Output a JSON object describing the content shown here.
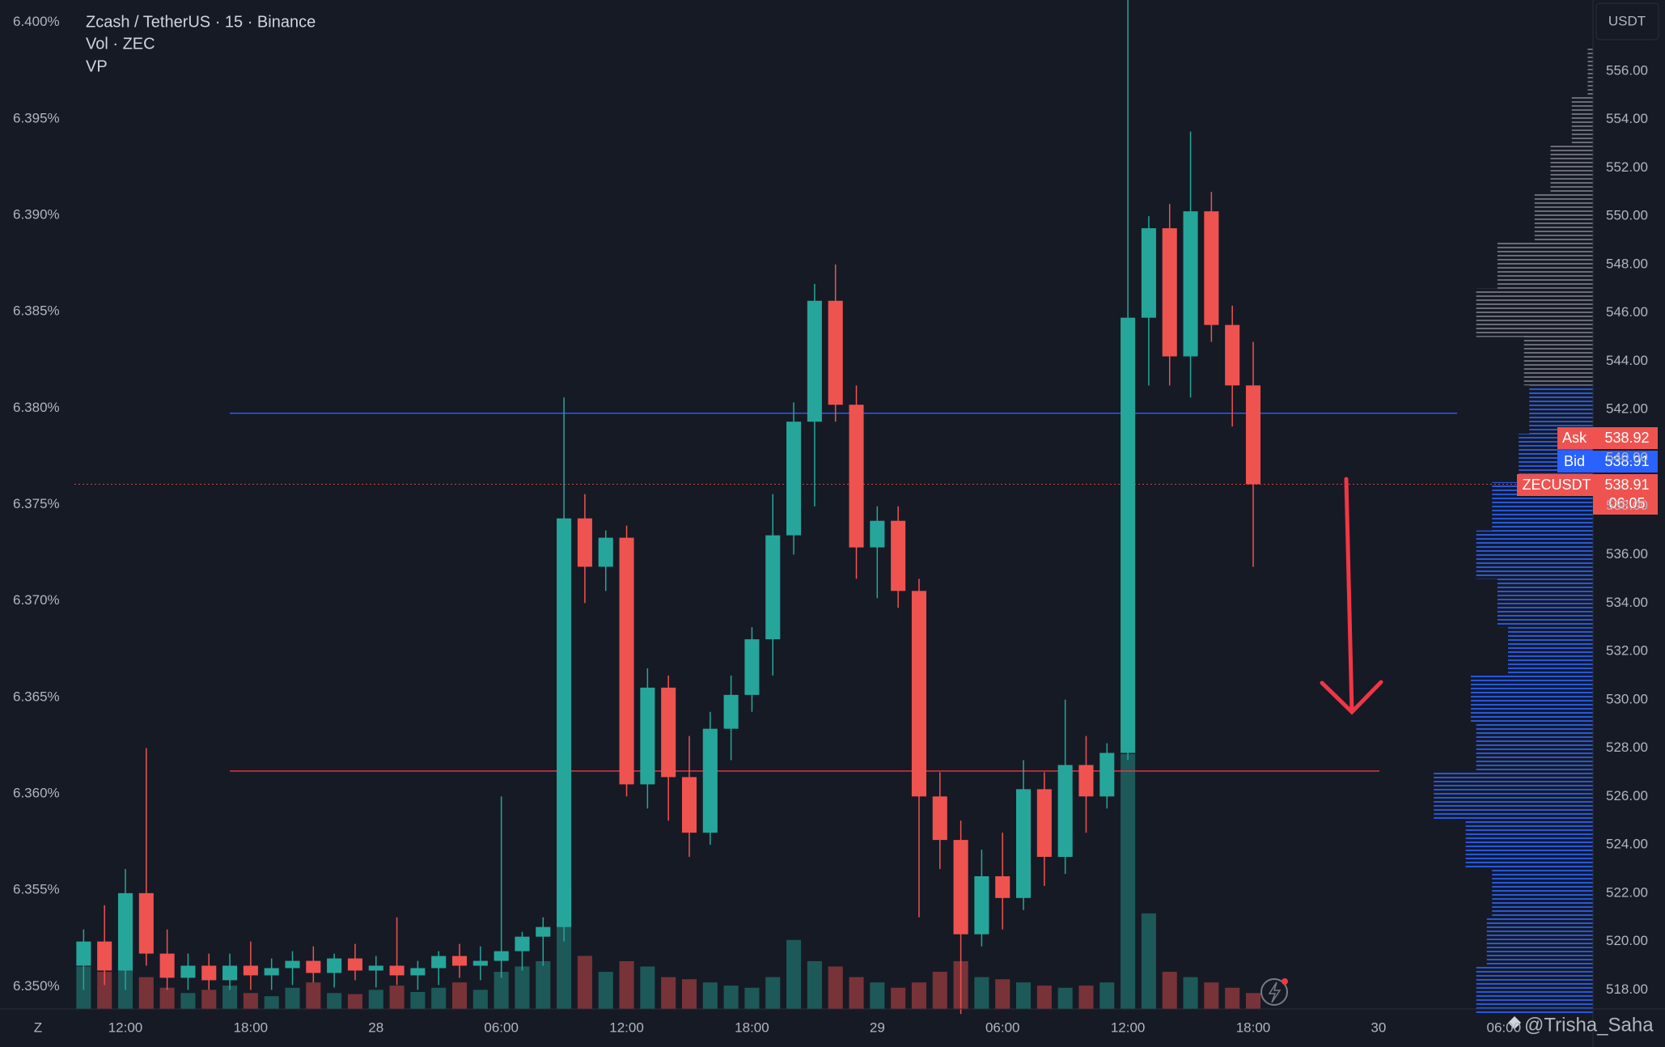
{
  "chart_data": {
    "type": "candlestick",
    "title": "Zcash / TetherUS · 15 · Binance",
    "indicators": [
      "Vol · ZEC",
      "VP"
    ],
    "currency": "USDT",
    "up_color": "#26a69a",
    "down_color": "#ef5350",
    "x": [
      10,
      11,
      12,
      13,
      14,
      15,
      16,
      17,
      18,
      19,
      20,
      21,
      22,
      23,
      24,
      25,
      26,
      27,
      28,
      29,
      30,
      31,
      32,
      33,
      34,
      35,
      36,
      37,
      38,
      39,
      40,
      41,
      42,
      43,
      44,
      45,
      46,
      47,
      48,
      49,
      50,
      51,
      52,
      53,
      54,
      55,
      56,
      57,
      58,
      59,
      60,
      61,
      62,
      63,
      64,
      65,
      66
    ],
    "open": [
      519,
      520,
      518.8,
      522,
      519.5,
      518.5,
      519,
      518.4,
      519,
      518.6,
      518.9,
      519.2,
      518.7,
      519.3,
      518.8,
      519,
      518.6,
      518.9,
      519.4,
      519,
      519.2,
      519.6,
      520.2,
      520.6,
      537.5,
      535.5,
      536.7,
      526.5,
      530.5,
      526.8,
      524.5,
      528.8,
      530.2,
      532.5,
      536.8,
      541.5,
      546.5,
      542.2,
      536.3,
      537.4,
      534.5,
      526,
      524.2,
      520.3,
      522.7,
      521.8,
      526.3,
      523.5,
      527.3,
      526,
      527.8,
      545.8,
      549.5,
      544.2,
      550.2,
      545.5,
      543
    ],
    "high": [
      520.5,
      521.5,
      523,
      528,
      520.5,
      519.5,
      519.5,
      519.5,
      520,
      519.3,
      519.6,
      519.8,
      519.5,
      519.9,
      519.4,
      521,
      519.2,
      519.6,
      519.9,
      519.8,
      526,
      520.4,
      521,
      542.5,
      538.5,
      537,
      537.2,
      531.3,
      531,
      528.5,
      529.5,
      531,
      533,
      538.5,
      542.3,
      547.2,
      548,
      543,
      538,
      538,
      535,
      527,
      525,
      523.8,
      524.5,
      527.5,
      527,
      530,
      528.5,
      528.2,
      559,
      550,
      550.5,
      553.5,
      551,
      546.3,
      544.8
    ],
    "low": [
      518,
      518.2,
      518,
      519,
      518,
      518,
      518,
      518,
      518,
      518,
      518.2,
      518.3,
      518.1,
      518.4,
      518.1,
      518.2,
      518,
      518.2,
      518.5,
      518.4,
      518.5,
      518.8,
      519,
      520,
      534,
      534.5,
      526,
      525.5,
      525,
      523.5,
      524,
      527.5,
      529.5,
      531,
      536,
      538,
      541.5,
      535,
      534.2,
      533.8,
      521,
      523,
      517,
      519.8,
      520.5,
      521.3,
      522.3,
      522.8,
      524.5,
      525.5,
      527.5,
      543,
      543,
      542.5,
      544.8,
      541.3,
      535.5
    ],
    "close": [
      520,
      518.8,
      522,
      519.5,
      518.5,
      519,
      518.4,
      519,
      518.6,
      518.9,
      519.2,
      518.7,
      519.3,
      518.8,
      519,
      518.6,
      518.9,
      519.4,
      519,
      519.2,
      519.6,
      520.2,
      520.6,
      537.5,
      535.5,
      536.7,
      526.5,
      530.5,
      526.8,
      524.5,
      528.8,
      530.2,
      532.5,
      536.8,
      541.5,
      546.5,
      542.2,
      536.3,
      537.4,
      534.5,
      526,
      524.2,
      520.3,
      522.7,
      521.8,
      526.3,
      523.5,
      527.3,
      526,
      527.8,
      545.8,
      549.5,
      544.2,
      550.2,
      545.5,
      543,
      538.91
    ],
    "volume": [
      40,
      35,
      45,
      30,
      20,
      15,
      18,
      22,
      15,
      12,
      20,
      25,
      15,
      14,
      18,
      22,
      16,
      20,
      25,
      18,
      35,
      40,
      45,
      120,
      50,
      35,
      45,
      40,
      30,
      28,
      25,
      22,
      20,
      30,
      65,
      45,
      40,
      30,
      25,
      20,
      25,
      35,
      45,
      30,
      28,
      25,
      22,
      20,
      22,
      25,
      240,
      90,
      35,
      30,
      25,
      20,
      15
    ],
    "ylim": [
      517.21,
      558.94
    ],
    "yticks": [
      {
        "value": 518,
        "label": "518.00"
      },
      {
        "value": 520,
        "label": "520.00"
      },
      {
        "value": 522,
        "label": "522.00"
      },
      {
        "value": 524,
        "label": "524.00"
      },
      {
        "value": 526,
        "label": "526.00"
      },
      {
        "value": 528,
        "label": "528.00"
      },
      {
        "value": 530,
        "label": "530.00"
      },
      {
        "value": 532,
        "label": "532.00"
      },
      {
        "value": 534,
        "label": "534.00"
      },
      {
        "value": 536,
        "label": "536.00"
      },
      {
        "value": 538,
        "label": "538.00"
      },
      {
        "value": 540,
        "label": "540.00"
      },
      {
        "value": 542,
        "label": "542.00"
      },
      {
        "value": 544,
        "label": "544.00"
      },
      {
        "value": 546,
        "label": "546.00"
      },
      {
        "value": 548,
        "label": "548.00"
      },
      {
        "value": 550,
        "label": "550.00"
      },
      {
        "value": 552,
        "label": "552.00"
      },
      {
        "value": 554,
        "label": "554.00"
      },
      {
        "value": 556,
        "label": "556.00"
      }
    ],
    "y2lim": [
      6.34884,
      6.40116
    ],
    "y2ticks": [
      {
        "value": 6.35,
        "label": "6.350%"
      },
      {
        "value": 6.355,
        "label": "6.355%"
      },
      {
        "value": 6.36,
        "label": "6.360%"
      },
      {
        "value": 6.365,
        "label": "6.365%"
      },
      {
        "value": 6.37,
        "label": "6.370%"
      },
      {
        "value": 6.375,
        "label": "6.375%"
      },
      {
        "value": 6.38,
        "label": "6.380%"
      },
      {
        "value": 6.385,
        "label": "6.385%"
      },
      {
        "value": 6.39,
        "label": "6.390%"
      },
      {
        "value": 6.395,
        "label": "6.395%"
      },
      {
        "value": 6.4,
        "label": "6.400%"
      }
    ],
    "xlim": [
      9.56,
      82.27
    ],
    "xticks": [
      {
        "value": 12,
        "label": "12:00"
      },
      {
        "value": 18,
        "label": "18:00"
      },
      {
        "value": 24,
        "label": "28"
      },
      {
        "value": 30,
        "label": "06:00"
      },
      {
        "value": 36,
        "label": "12:00"
      },
      {
        "value": 42,
        "label": "18:00"
      },
      {
        "value": 48,
        "label": "29"
      },
      {
        "value": 54,
        "label": "06:00"
      },
      {
        "value": 60,
        "label": "12:00"
      },
      {
        "value": 66,
        "label": "18:00"
      },
      {
        "value": 72,
        "label": "30"
      },
      {
        "value": 78,
        "label": "06:00"
      }
    ],
    "grid": false,
    "levels": [
      {
        "value": 541.85,
        "color": "#2962ff"
      },
      {
        "value": 527.05,
        "color": "#f23645"
      }
    ],
    "volume_profile": {
      "prices": [
        518,
        520,
        522,
        524,
        526,
        528,
        530,
        532,
        534,
        536,
        538,
        540,
        542,
        544,
        546,
        548,
        550,
        552,
        554,
        556
      ],
      "values": [
        110,
        100,
        95,
        120,
        150,
        110,
        115,
        80,
        90,
        110,
        95,
        70,
        60,
        65,
        110,
        90,
        55,
        40,
        20,
        5
      ],
      "color": "#2962ff",
      "upper_color": "#787b86",
      "value_area_high": 543
    },
    "symbol": "ZECUSDT",
    "ask_label": "Ask",
    "ask": 538.92,
    "bid_label": "Bid",
    "bid": 538.91,
    "last": 538.91,
    "countdown": "06:05",
    "axis_corner": "Z",
    "watermark": "@Trisha_Saha"
  }
}
